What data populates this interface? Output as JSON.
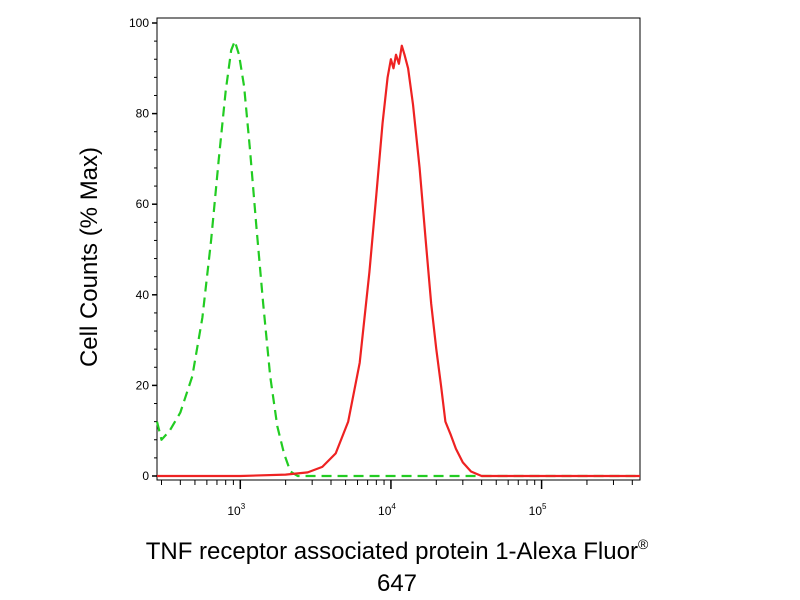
{
  "chart_data": {
    "type": "line",
    "ylabel": "Cell Counts (% Max)",
    "xlabel": {
      "line1": "TNF receptor associated protein 1-Alexa Fluor",
      "superscript": "®",
      "line2": "647"
    },
    "x_scale": "log",
    "xlim": [
      280,
      450000
    ],
    "ylim": [
      0,
      100
    ],
    "yticks": [
      "0",
      "20",
      "40",
      "60",
      "80",
      "100"
    ],
    "xticks": [
      {
        "base": "10",
        "exp": "3",
        "value": 1000
      },
      {
        "base": "10",
        "exp": "4",
        "value": 10000
      },
      {
        "base": "10",
        "exp": "5",
        "value": 100000
      }
    ],
    "grid": false,
    "series": [
      {
        "color": "#22cc22",
        "style": "dashed",
        "points": [
          [
            280,
            12
          ],
          [
            300,
            8
          ],
          [
            340,
            10
          ],
          [
            400,
            14
          ],
          [
            480,
            22
          ],
          [
            560,
            35
          ],
          [
            640,
            52
          ],
          [
            720,
            70
          ],
          [
            800,
            85
          ],
          [
            870,
            94
          ],
          [
            920,
            96
          ],
          [
            980,
            93
          ],
          [
            1060,
            86
          ],
          [
            1160,
            72
          ],
          [
            1280,
            55
          ],
          [
            1420,
            38
          ],
          [
            1580,
            22
          ],
          [
            1760,
            11
          ],
          [
            1950,
            5
          ],
          [
            2150,
            1
          ],
          [
            2400,
            0
          ],
          [
            3000,
            0
          ],
          [
            10000,
            0
          ],
          [
            100000,
            0
          ],
          [
            450000,
            0
          ]
        ]
      },
      {
        "color": "#ee2222",
        "style": "solid",
        "points": [
          [
            280,
            0
          ],
          [
            1000,
            0
          ],
          [
            2000,
            0.3
          ],
          [
            2800,
            0.8
          ],
          [
            3500,
            2
          ],
          [
            4300,
            5
          ],
          [
            5200,
            12
          ],
          [
            6200,
            25
          ],
          [
            7200,
            45
          ],
          [
            8000,
            62
          ],
          [
            8800,
            78
          ],
          [
            9500,
            88
          ],
          [
            10000,
            92
          ],
          [
            10400,
            90
          ],
          [
            10800,
            93
          ],
          [
            11300,
            91
          ],
          [
            11800,
            95
          ],
          [
            12300,
            93
          ],
          [
            13000,
            90
          ],
          [
            14000,
            82
          ],
          [
            15500,
            68
          ],
          [
            17000,
            52
          ],
          [
            18500,
            38
          ],
          [
            20000,
            28
          ],
          [
            21500,
            20
          ],
          [
            23000,
            12
          ],
          [
            25000,
            9
          ],
          [
            27000,
            6
          ],
          [
            30000,
            3
          ],
          [
            34000,
            1
          ],
          [
            40000,
            0
          ],
          [
            100000,
            0
          ],
          [
            450000,
            0
          ]
        ]
      }
    ]
  }
}
